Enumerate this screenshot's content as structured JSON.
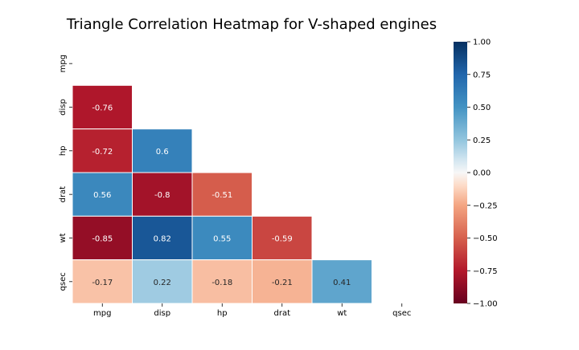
{
  "chart_data": {
    "type": "heatmap",
    "title": "Triangle Correlation Heatmap for V-shaped engines",
    "variables": [
      "mpg",
      "disp",
      "hp",
      "drat",
      "wt",
      "qsec"
    ],
    "matrix": [
      [
        null,
        null,
        null,
        null,
        null,
        null
      ],
      [
        -0.76,
        null,
        null,
        null,
        null,
        null
      ],
      [
        -0.72,
        0.6,
        null,
        null,
        null,
        null
      ],
      [
        0.56,
        -0.8,
        -0.51,
        null,
        null,
        null
      ],
      [
        -0.85,
        0.82,
        0.55,
        -0.59,
        null,
        null
      ],
      [
        -0.17,
        0.22,
        -0.18,
        -0.21,
        0.41,
        null
      ]
    ],
    "value_labels": [
      [
        "",
        "",
        "",
        "",
        "",
        ""
      ],
      [
        "-0.76",
        "",
        "",
        "",
        "",
        ""
      ],
      [
        "-0.72",
        "0.6",
        "",
        "",
        "",
        ""
      ],
      [
        "0.56",
        "-0.8",
        "-0.51",
        "",
        "",
        ""
      ],
      [
        "-0.85",
        "0.82",
        "0.55",
        "-0.59",
        "",
        ""
      ],
      [
        "-0.17",
        "0.22",
        "-0.18",
        "-0.21",
        "0.41",
        ""
      ]
    ],
    "mask": "upper-triangle",
    "colormap": "RdBu",
    "vmin": -1.0,
    "vmax": 1.0,
    "colorbar": {
      "ticks": [
        1.0,
        0.75,
        0.5,
        0.25,
        0.0,
        -0.25,
        -0.5,
        -0.75,
        -1.0
      ],
      "tick_labels": [
        "1.00",
        "0.75",
        "0.50",
        "0.25",
        "0.00",
        "−0.25",
        "−0.50",
        "−0.75",
        "−1.00"
      ],
      "placement": "right"
    },
    "colors": {
      "positive_max": "#053061",
      "negative_max": "#67001f",
      "zero": "#f7f7f7",
      "grid_line": "#ffffff"
    }
  }
}
